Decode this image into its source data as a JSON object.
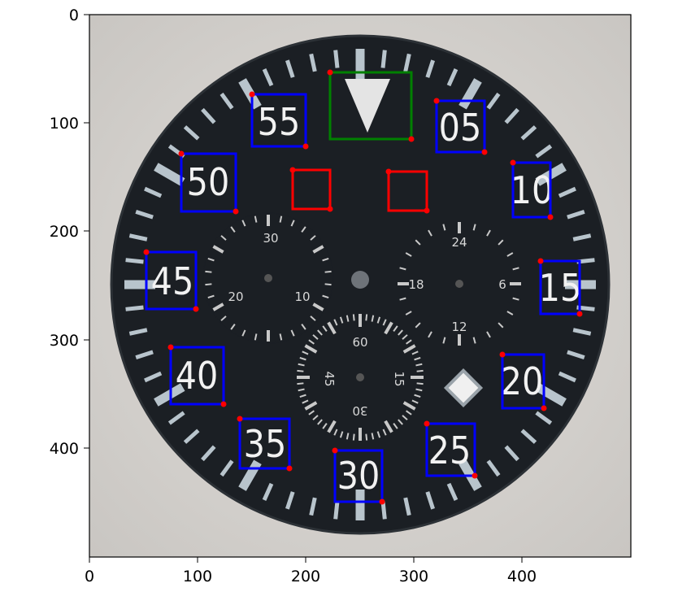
{
  "axes": {
    "x_ticks": [
      "0",
      "100",
      "200",
      "300",
      "400"
    ],
    "y_ticks": [
      "0",
      "100",
      "200",
      "300",
      "400"
    ]
  },
  "dial": {
    "hour_numbers": [
      "55",
      "05",
      "50",
      "10",
      "45",
      "15",
      "40",
      "20",
      "35",
      "25",
      "30"
    ],
    "sub_dial_top_left": [
      "30",
      "20",
      "10"
    ],
    "sub_dial_top_right": [
      "24",
      "18",
      "6",
      "12"
    ],
    "sub_dial_bottom": [
      "60",
      "45",
      "15",
      "30"
    ]
  },
  "annotations": {
    "box_colors": {
      "digits": "#0000ff",
      "marker": "#008000",
      "slots": "#ff0000",
      "corner_dots": "#ff0000"
    },
    "digit_boxes": 11,
    "marker_boxes": 1,
    "slot_boxes": 2
  },
  "colors": {
    "dial": "#1b1f24",
    "background": "#d9d6d2",
    "lume": "#b8c4cc"
  }
}
